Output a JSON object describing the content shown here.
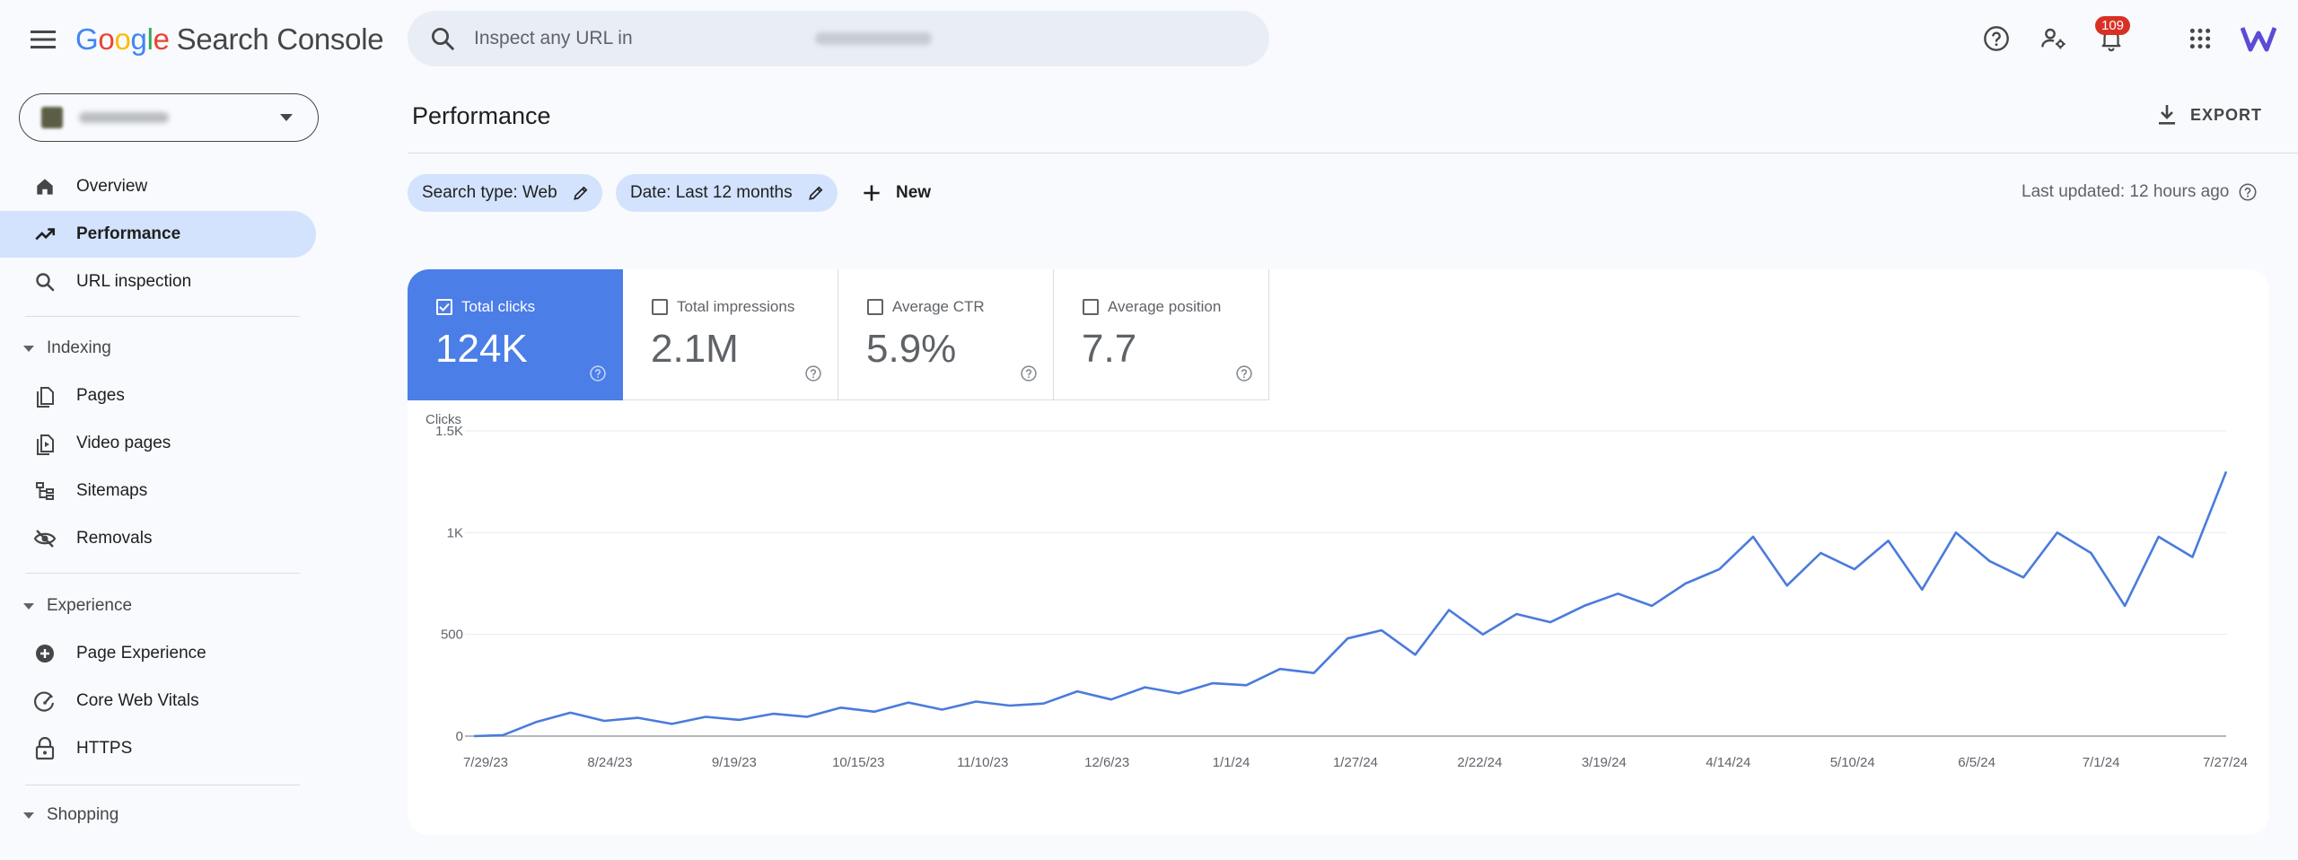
{
  "header": {
    "logo_google": [
      "G",
      "o",
      "o",
      "g",
      "l",
      "e"
    ],
    "logo_product": "Search Console",
    "search_placeholder": "Inspect any URL in",
    "notifications_count": "109"
  },
  "sidebar": {
    "main_items": [
      {
        "label": "Overview",
        "icon": "home-icon"
      },
      {
        "label": "Performance",
        "icon": "trending-up-icon",
        "active": true
      },
      {
        "label": "URL inspection",
        "icon": "search-icon"
      }
    ],
    "sections": [
      {
        "label": "Indexing",
        "items": [
          {
            "label": "Pages",
            "icon": "pages-icon"
          },
          {
            "label": "Video pages",
            "icon": "video-pages-icon"
          },
          {
            "label": "Sitemaps",
            "icon": "sitemap-icon"
          },
          {
            "label": "Removals",
            "icon": "eye-off-icon"
          }
        ]
      },
      {
        "label": "Experience",
        "items": [
          {
            "label": "Page Experience",
            "icon": "plus-circle-icon"
          },
          {
            "label": "Core Web Vitals",
            "icon": "gauge-icon"
          },
          {
            "label": "HTTPS",
            "icon": "lock-icon"
          }
        ]
      },
      {
        "label": "Shopping",
        "items": []
      }
    ]
  },
  "main": {
    "title": "Performance",
    "export_label": "EXPORT",
    "filters": [
      {
        "label": "Search type: Web"
      },
      {
        "label": "Date: Last 12 months"
      }
    ],
    "new_label": "New",
    "last_updated": "Last updated: 12 hours ago",
    "metrics": [
      {
        "label": "Total clicks",
        "value": "124K",
        "checked": true
      },
      {
        "label": "Total impressions",
        "value": "2.1M",
        "checked": false
      },
      {
        "label": "Average CTR",
        "value": "5.9%",
        "checked": false
      },
      {
        "label": "Average position",
        "value": "7.7",
        "checked": false
      }
    ]
  },
  "colors": {
    "accent": "#4c7ee8",
    "line": "#4a7bdc",
    "chip": "#d3e3fd",
    "badge": "#d93025"
  },
  "chart_data": {
    "type": "line",
    "ylabel": "Clicks",
    "ylim": [
      0,
      1500
    ],
    "yticks": [
      0,
      500,
      1000,
      1500
    ],
    "ytick_labels": [
      "0",
      "500",
      "1K",
      "1.5K"
    ],
    "x_start": "7/29/23",
    "x_end": "7/27/24",
    "xtick_labels": [
      "7/29/23",
      "8/24/23",
      "9/19/23",
      "10/15/23",
      "11/10/23",
      "12/6/23",
      "1/1/24",
      "1/27/24",
      "2/22/24",
      "3/19/24",
      "4/14/24",
      "5/10/24",
      "6/5/24",
      "7/1/24",
      "7/27/24"
    ],
    "grid": true,
    "series": [
      {
        "x_days": [
          0,
          6,
          13,
          20,
          27,
          34,
          41,
          48,
          55,
          62,
          69,
          76,
          83,
          90,
          97,
          104,
          111,
          118,
          125,
          132,
          139,
          146,
          153,
          160,
          167,
          174,
          181,
          188,
          195,
          202,
          209,
          216,
          223,
          230,
          237,
          244,
          251,
          258,
          265,
          272,
          279,
          286,
          293,
          300,
          307,
          314,
          321,
          328,
          335,
          342,
          349,
          356,
          363
        ],
        "values": [
          0,
          5,
          70,
          115,
          75,
          90,
          60,
          95,
          80,
          110,
          95,
          140,
          120,
          165,
          130,
          170,
          150,
          160,
          220,
          180,
          240,
          210,
          260,
          250,
          330,
          310,
          480,
          520,
          400,
          620,
          500,
          600,
          560,
          640,
          700,
          640,
          750,
          820,
          980,
          740,
          900,
          820,
          960,
          720,
          1000,
          860,
          780,
          1000,
          900,
          640,
          980,
          880,
          1300
        ]
      }
    ]
  }
}
